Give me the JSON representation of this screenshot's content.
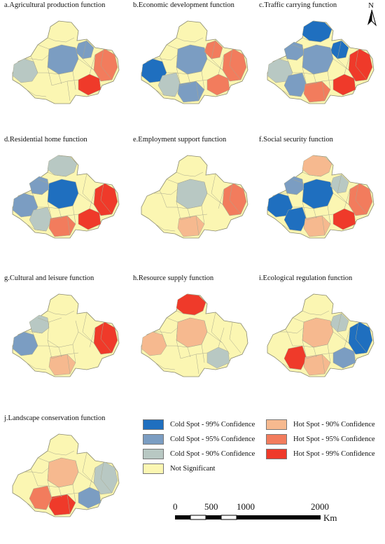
{
  "panels": [
    {
      "title": "a.Agricultural production function",
      "regions": [
        [
          "W",
          3
        ],
        [
          "NE",
          2
        ],
        [
          "C",
          2
        ],
        [
          "E",
          5
        ],
        [
          "SE",
          6
        ]
      ]
    },
    {
      "title": "b.Economic development function",
      "regions": [
        [
          "W",
          1
        ],
        [
          "C",
          2
        ],
        [
          "SW",
          3
        ],
        [
          "S",
          2
        ],
        [
          "E",
          5
        ],
        [
          "SE",
          5
        ],
        [
          "NE",
          5
        ]
      ]
    },
    {
      "title": "c.Traffic carrying function",
      "regions": [
        [
          "N",
          1
        ],
        [
          "NE",
          1
        ],
        [
          "C",
          2
        ],
        [
          "NW",
          2
        ],
        [
          "W",
          3
        ],
        [
          "SW",
          2
        ],
        [
          "SE",
          6
        ],
        [
          "E",
          6
        ],
        [
          "S",
          5
        ]
      ]
    },
    {
      "title": "d.Residential home function",
      "regions": [
        [
          "C",
          1
        ],
        [
          "N",
          3
        ],
        [
          "W",
          2
        ],
        [
          "SW",
          3
        ],
        [
          "NW",
          2
        ],
        [
          "E",
          6
        ],
        [
          "SE",
          6
        ],
        [
          "S",
          5
        ]
      ]
    },
    {
      "title": "e.Employment support function",
      "regions": [
        [
          "E",
          5
        ],
        [
          "S",
          4
        ],
        [
          "C",
          3
        ]
      ]
    },
    {
      "title": "f.Social security function",
      "regions": [
        [
          "N",
          4
        ],
        [
          "W",
          1
        ],
        [
          "SW",
          1
        ],
        [
          "C",
          1
        ],
        [
          "NW",
          2
        ],
        [
          "SE",
          6
        ],
        [
          "E",
          5
        ],
        [
          "S",
          4
        ],
        [
          "NE",
          3
        ]
      ]
    },
    {
      "title": "g.Cultural and leisure function",
      "regions": [
        [
          "W",
          2
        ],
        [
          "NW",
          3
        ],
        [
          "E",
          6
        ],
        [
          "S",
          4
        ]
      ]
    },
    {
      "title": "h.Resource supply function",
      "regions": [
        [
          "N",
          6
        ],
        [
          "C",
          4
        ],
        [
          "W",
          4
        ],
        [
          "SE",
          3
        ]
      ]
    },
    {
      "title": "i.Ecological regulation function",
      "regions": [
        [
          "E",
          1
        ],
        [
          "SE",
          2
        ],
        [
          "SW",
          6
        ],
        [
          "S",
          4
        ],
        [
          "C",
          4
        ],
        [
          "NE",
          3
        ]
      ]
    },
    {
      "title": "j.Landscape conservation function",
      "regions": [
        [
          "C",
          4
        ],
        [
          "S",
          6
        ],
        [
          "SW",
          5
        ],
        [
          "SE",
          2
        ],
        [
          "E",
          3
        ]
      ]
    }
  ],
  "legend": [
    {
      "label": "Cold Spot - 99% Confidence",
      "color": "#1f6fbf"
    },
    {
      "label": "Hot Spot - 90% Confidence",
      "color": "#f6b98f"
    },
    {
      "label": "Cold Spot - 95% Confidence",
      "color": "#7b9dc2"
    },
    {
      "label": "Hot Spot - 95% Confidence",
      "color": "#f27c5d"
    },
    {
      "label": "Cold Spot - 90% Confidence",
      "color": "#b8c8c3"
    },
    {
      "label": "Hot Spot - 99% Confidence",
      "color": "#ef3a2a"
    },
    {
      "label": "Not Significant",
      "color": "#fbf6b2"
    }
  ],
  "class_colors": [
    "#fbf6b2",
    "#1f6fbf",
    "#7b9dc2",
    "#b8c8c3",
    "#f6b98f",
    "#f27c5d",
    "#ef3a2a"
  ],
  "scale": {
    "ticks": [
      "0",
      "500",
      "1000",
      "2000"
    ],
    "unit": "Km"
  },
  "north_label": "N",
  "map_colors": {
    "outline": "#8a8a70",
    "internal": "#a9a98f"
  }
}
